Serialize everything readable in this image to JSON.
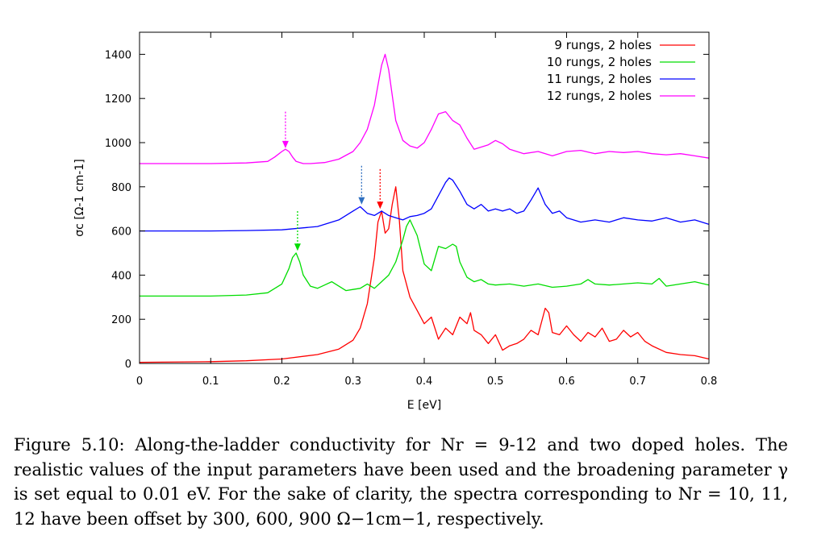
{
  "chart_data": {
    "type": "line",
    "xlabel": "E [eV]",
    "ylabel": "σc [Ω-1 cm-1]",
    "xlim": [
      0,
      0.8
    ],
    "ylim": [
      0,
      1500
    ],
    "xticks": [
      "0",
      "0.1",
      "0.2",
      "0.3",
      "0.4",
      "0.5",
      "0.6",
      "0.7",
      "0.8"
    ],
    "yticks": [
      "0",
      "200",
      "400",
      "600",
      "800",
      "1000",
      "1200",
      "1400"
    ],
    "grid": false,
    "legend_position": "top-right",
    "series": [
      {
        "name": "9 rungs, 2 holes",
        "color": "#ff0000",
        "x": [
          0,
          0.1,
          0.15,
          0.2,
          0.25,
          0.28,
          0.3,
          0.31,
          0.32,
          0.33,
          0.335,
          0.34,
          0.345,
          0.35,
          0.355,
          0.36,
          0.365,
          0.37,
          0.38,
          0.39,
          0.4,
          0.41,
          0.42,
          0.43,
          0.44,
          0.45,
          0.46,
          0.465,
          0.47,
          0.48,
          0.49,
          0.5,
          0.51,
          0.52,
          0.53,
          0.54,
          0.55,
          0.56,
          0.57,
          0.575,
          0.58,
          0.59,
          0.6,
          0.61,
          0.62,
          0.63,
          0.64,
          0.65,
          0.66,
          0.67,
          0.68,
          0.69,
          0.7,
          0.71,
          0.72,
          0.74,
          0.76,
          0.78,
          0.8
        ],
        "y": [
          5,
          8,
          12,
          20,
          40,
          65,
          105,
          160,
          270,
          480,
          640,
          690,
          590,
          610,
          720,
          800,
          650,
          420,
          300,
          240,
          180,
          210,
          110,
          160,
          130,
          210,
          180,
          230,
          150,
          130,
          90,
          130,
          60,
          80,
          90,
          110,
          150,
          130,
          250,
          230,
          140,
          130,
          170,
          130,
          100,
          140,
          120,
          160,
          100,
          110,
          150,
          120,
          140,
          100,
          80,
          50,
          40,
          35,
          20
        ]
      },
      {
        "name": "10 rungs, 2 holes",
        "color": "#00dd00",
        "x": [
          0,
          0.1,
          0.15,
          0.18,
          0.2,
          0.21,
          0.215,
          0.22,
          0.225,
          0.23,
          0.24,
          0.25,
          0.26,
          0.27,
          0.28,
          0.29,
          0.3,
          0.31,
          0.32,
          0.33,
          0.34,
          0.35,
          0.36,
          0.37,
          0.375,
          0.38,
          0.39,
          0.4,
          0.41,
          0.42,
          0.43,
          0.44,
          0.445,
          0.45,
          0.46,
          0.47,
          0.48,
          0.49,
          0.5,
          0.52,
          0.54,
          0.56,
          0.58,
          0.6,
          0.62,
          0.63,
          0.64,
          0.66,
          0.68,
          0.7,
          0.72,
          0.73,
          0.74,
          0.76,
          0.78,
          0.8
        ],
        "y": [
          305,
          305,
          310,
          320,
          360,
          430,
          480,
          500,
          460,
          400,
          350,
          340,
          355,
          370,
          350,
          330,
          335,
          340,
          360,
          340,
          370,
          400,
          460,
          560,
          620,
          650,
          580,
          450,
          420,
          530,
          520,
          540,
          530,
          460,
          390,
          370,
          380,
          360,
          355,
          360,
          350,
          360,
          345,
          350,
          360,
          380,
          360,
          355,
          360,
          365,
          360,
          385,
          350,
          360,
          370,
          355
        ]
      },
      {
        "name": "11 rungs, 2 holes",
        "color": "#0000ff",
        "x": [
          0,
          0.1,
          0.15,
          0.2,
          0.25,
          0.28,
          0.3,
          0.31,
          0.32,
          0.33,
          0.34,
          0.35,
          0.36,
          0.37,
          0.38,
          0.39,
          0.4,
          0.41,
          0.42,
          0.43,
          0.435,
          0.44,
          0.45,
          0.46,
          0.47,
          0.48,
          0.49,
          0.5,
          0.51,
          0.52,
          0.53,
          0.54,
          0.55,
          0.56,
          0.57,
          0.58,
          0.59,
          0.6,
          0.62,
          0.64,
          0.66,
          0.68,
          0.7,
          0.72,
          0.74,
          0.76,
          0.78,
          0.8
        ],
        "y": [
          600,
          600,
          602,
          605,
          620,
          650,
          690,
          710,
          680,
          670,
          690,
          670,
          660,
          650,
          665,
          670,
          680,
          700,
          760,
          820,
          840,
          830,
          780,
          720,
          700,
          720,
          690,
          700,
          690,
          700,
          680,
          690,
          740,
          795,
          720,
          680,
          690,
          660,
          640,
          650,
          640,
          660,
          650,
          645,
          660,
          640,
          650,
          630
        ]
      },
      {
        "name": "12 rungs, 2 holes",
        "color": "#ff00ff",
        "x": [
          0,
          0.1,
          0.15,
          0.18,
          0.19,
          0.2,
          0.205,
          0.21,
          0.215,
          0.22,
          0.23,
          0.24,
          0.26,
          0.28,
          0.3,
          0.31,
          0.32,
          0.33,
          0.335,
          0.34,
          0.345,
          0.35,
          0.36,
          0.37,
          0.38,
          0.39,
          0.4,
          0.41,
          0.42,
          0.43,
          0.44,
          0.45,
          0.46,
          0.47,
          0.48,
          0.49,
          0.5,
          0.51,
          0.52,
          0.54,
          0.56,
          0.58,
          0.6,
          0.62,
          0.64,
          0.66,
          0.68,
          0.7,
          0.72,
          0.74,
          0.76,
          0.78,
          0.8
        ],
        "y": [
          905,
          905,
          908,
          915,
          935,
          960,
          970,
          960,
          935,
          915,
          905,
          905,
          910,
          925,
          960,
          1000,
          1060,
          1170,
          1260,
          1350,
          1400,
          1330,
          1100,
          1010,
          985,
          975,
          1000,
          1060,
          1130,
          1140,
          1100,
          1080,
          1020,
          970,
          980,
          990,
          1010,
          995,
          970,
          950,
          960,
          940,
          960,
          965,
          950,
          960,
          955,
          960,
          950,
          945,
          950,
          940,
          930
        ]
      }
    ],
    "annotations": [
      {
        "type": "arrow",
        "color": "#ff00ff",
        "x": 0.205,
        "y_from": 1140,
        "y_to": 975
      },
      {
        "type": "arrow",
        "color": "#00dd00",
        "x": 0.222,
        "y_from": 690,
        "y_to": 510
      },
      {
        "type": "arrow",
        "color": "#3070c0",
        "x": 0.312,
        "y_from": 895,
        "y_to": 720
      },
      {
        "type": "arrow",
        "color": "#ff0000",
        "x": 0.338,
        "y_from": 880,
        "y_to": 700
      }
    ]
  },
  "caption": {
    "label": "Figure 5.10:",
    "text": "Along-the-ladder conductivity for Nr = 9-12 and two doped holes. The realistic values of the input parameters have been used and the broadening parameter γ is set equal to 0.01 eV. For the sake of clarity, the spectra corresponding to Nr = 10, 11, 12 have been offset by 300, 600, 900 Ω−1cm−1, respectively."
  }
}
